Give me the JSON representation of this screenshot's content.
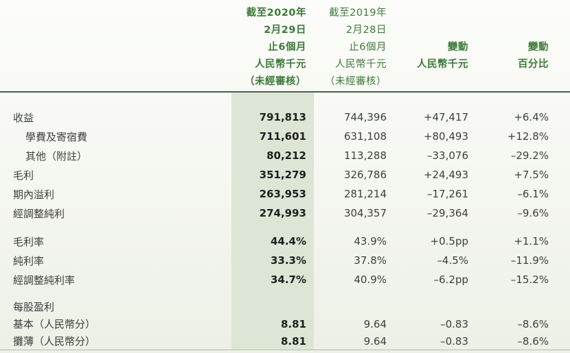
{
  "table": {
    "header": {
      "col_2020": {
        "lines": [
          "截至2020年",
          "2月29日",
          "止6個月",
          "人民幣千元",
          "（未經審核）"
        ]
      },
      "col_2019": {
        "lines": [
          "截至2019年",
          "2月28日",
          "止6個月",
          "人民幣千元",
          "（未經審核）"
        ]
      },
      "col_change_amount": {
        "lines": [
          "變動",
          "人民幣千元"
        ]
      },
      "col_change_pct": {
        "lines": [
          "變動",
          "百分比"
        ]
      }
    },
    "rows": [
      {
        "label": "收益",
        "v2020": "791,813",
        "v2019": "744,396",
        "chg": "+47,417",
        "pct": "+6.4%"
      },
      {
        "label": "學費及寄宿費",
        "v2020": "711,601",
        "v2019": "631,108",
        "chg": "+80,493",
        "pct": "+12.8%"
      },
      {
        "label": "其他（附註）",
        "v2020": "80,212",
        "v2019": "113,288",
        "chg": "–33,076",
        "pct": "–29.2%"
      },
      {
        "label": "毛利",
        "v2020": "351,279",
        "v2019": "326,786",
        "chg": "+24,493",
        "pct": "+7.5%"
      },
      {
        "label": "期內溢利",
        "v2020": "263,953",
        "v2019": "281,214",
        "chg": "–17,261",
        "pct": "–6.1%"
      },
      {
        "label": "經調整純利",
        "v2020": "274,993",
        "v2019": "304,357",
        "chg": "–29,364",
        "pct": "–9.6%"
      },
      {
        "label": "毛利率",
        "v2020": "44.4%",
        "v2019": "43.9%",
        "chg": "+0.5pp",
        "pct": "+1.1%"
      },
      {
        "label": "純利率",
        "v2020": "33.3%",
        "v2019": "37.8%",
        "chg": "–4.5%",
        "pct": "–11.9%"
      },
      {
        "label": "經調整純利率",
        "v2020": "34.7%",
        "v2019": "40.9%",
        "chg": "–6.2pp",
        "pct": "–15.2%"
      },
      {
        "label": "每股盈利",
        "v2020": "",
        "v2019": "",
        "chg": "",
        "pct": ""
      },
      {
        "label": "基本（人民幣分）",
        "v2020": "8.81",
        "v2019": "9.64",
        "chg": "–0.83",
        "pct": "–8.6%"
      },
      {
        "label": "攤薄（人民幣分）",
        "v2020": "8.81",
        "v2019": "9.64",
        "chg": "–0.83",
        "pct": "–8.6%"
      }
    ],
    "colors": {
      "accent_green": "#3e7939",
      "highlight_band": "#dde5d6",
      "rule_dark": "#4e5c52",
      "rule_light": "#b3bfae",
      "text_bold": "#1d1f1d",
      "text_body": "#3c3e3c"
    }
  }
}
